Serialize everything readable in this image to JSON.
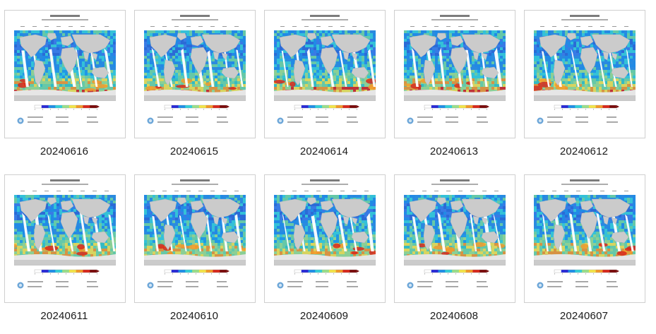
{
  "files": [
    {
      "name": "20240616",
      "variant": 0
    },
    {
      "name": "20240615",
      "variant": 1
    },
    {
      "name": "20240614",
      "variant": 2
    },
    {
      "name": "20240613",
      "variant": 3
    },
    {
      "name": "20240612",
      "variant": 4
    },
    {
      "name": "20240611",
      "variant": 5
    },
    {
      "name": "20240610",
      "variant": 6
    },
    {
      "name": "20240609",
      "variant": 7
    },
    {
      "name": "20240608",
      "variant": 8
    },
    {
      "name": "20240607",
      "variant": 9
    }
  ],
  "colors": {
    "land": "#cbcbcb",
    "ice": "#e6e6e6",
    "colorbar": [
      "#ffffff",
      "#2a2ad8",
      "#1f8fe8",
      "#35d0d8",
      "#9be08a",
      "#f4e64a",
      "#f39a2a",
      "#d8281c",
      "#7a0a0a"
    ]
  }
}
